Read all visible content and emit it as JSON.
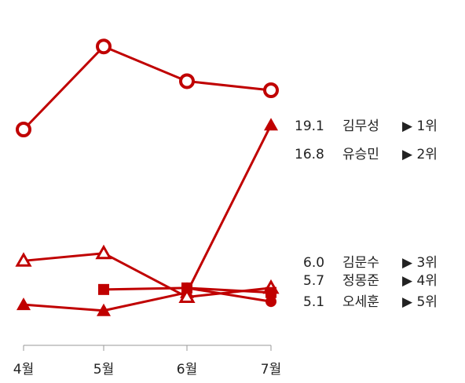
{
  "chart_data": {
    "type": "line",
    "title": "",
    "xlabel": "",
    "ylabel": "",
    "categories": [
      "4월",
      "5월",
      "6월",
      "7월"
    ],
    "ylim": [
      3.5,
      23
    ],
    "grid": false,
    "legend": "end-labels-right",
    "line_color": "#c00000",
    "series": [
      {
        "name": "김무성",
        "marker": "ring",
        "values": [
          16.5,
          22.0,
          19.7,
          19.1
        ],
        "end_value": "19.1",
        "rank": "▶ 1위"
      },
      {
        "name": "유승민",
        "marker": "triangle-filled",
        "values": [
          4.9,
          4.5,
          5.7,
          16.8
        ],
        "end_value": "16.8",
        "rank": "▶ 2위"
      },
      {
        "name": "김문수",
        "marker": "triangle-open",
        "values": [
          7.8,
          8.3,
          5.4,
          6.0
        ],
        "end_value": "6.0",
        "rank": "▶ 3위"
      },
      {
        "name": "정몽준",
        "marker": "square",
        "values": [
          null,
          5.9,
          6.0,
          5.7
        ],
        "end_value": "5.7",
        "rank": "▶ 4위"
      },
      {
        "name": "오세훈",
        "marker": "circle-filled",
        "values": [
          null,
          null,
          6.0,
          5.1
        ],
        "end_value": "5.1",
        "rank": "▶ 5위"
      }
    ]
  }
}
